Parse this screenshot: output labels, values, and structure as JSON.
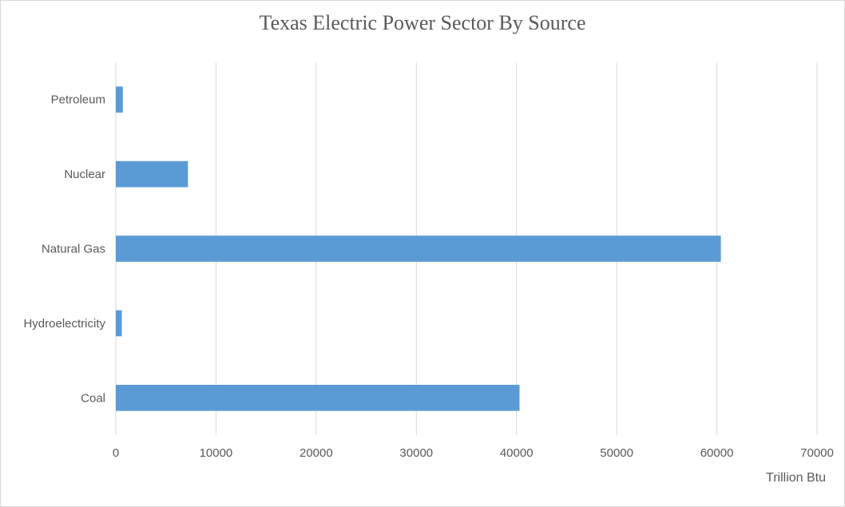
{
  "chart_data": {
    "type": "bar",
    "orientation": "horizontal",
    "title": "Texas Electric Power Sector By Source",
    "xlabel": "Trillion Btu",
    "ylabel": "",
    "categories": [
      "Petroleum",
      "Nuclear",
      "Natural Gas",
      "Hydroelectricity",
      "Coal"
    ],
    "values": [
      700,
      7200,
      60400,
      600,
      40300
    ],
    "xlim": [
      0,
      70000
    ],
    "xticks": [
      "0",
      "10000",
      "20000",
      "30000",
      "40000",
      "50000",
      "60000",
      "70000"
    ],
    "grid": true,
    "bar_color": "#5b9bd5"
  }
}
